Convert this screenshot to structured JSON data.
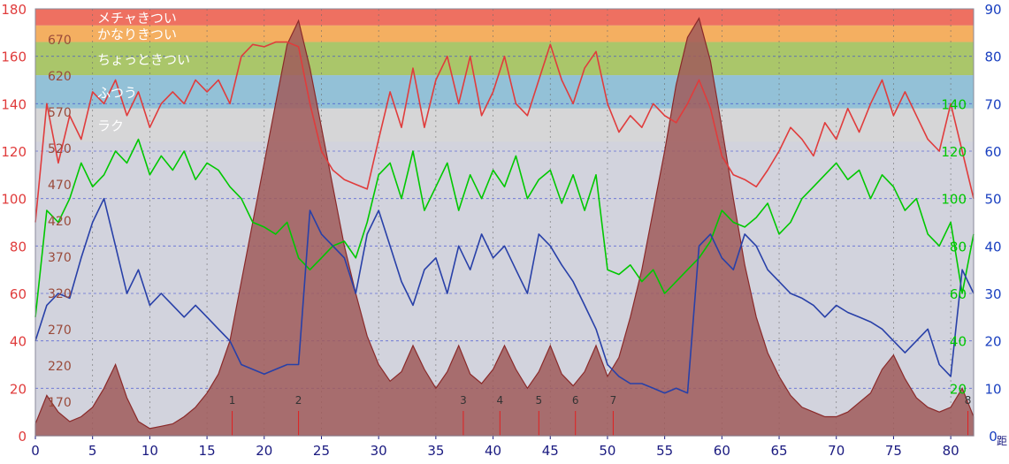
{
  "chart_data": {
    "type": "line",
    "x_ticks": [
      0,
      5,
      10,
      15,
      20,
      25,
      30,
      35,
      40,
      45,
      50,
      55,
      60,
      65,
      70,
      75,
      80
    ],
    "xlim": [
      0,
      82
    ],
    "y_left_ticks": [
      0,
      20,
      40,
      60,
      80,
      100,
      120,
      140,
      160,
      180
    ],
    "ylim_left": [
      0,
      180
    ],
    "y_right_ticks": [
      0,
      10,
      20,
      30,
      40,
      50,
      60,
      70,
      80,
      90
    ],
    "ylim_right": [
      0,
      90
    ],
    "y_right_green_ticks": [
      20,
      40,
      60,
      80,
      100,
      120,
      140
    ],
    "y_inner_ticks": [
      170,
      220,
      270,
      320,
      370,
      420,
      470,
      520,
      570,
      620,
      670
    ],
    "x_unit_label": "距",
    "zones": [
      {
        "label": "メチャきつい",
        "from": 173,
        "to": 180,
        "color": "#ef6a5a"
      },
      {
        "label": "かなりきつい",
        "from": 166,
        "to": 173,
        "color": "#f6ad5a"
      },
      {
        "label": "ちょっときつい",
        "from": 152,
        "to": 166,
        "color": "#a8c563"
      },
      {
        "label": "ふつう",
        "from": 138,
        "to": 152,
        "color": "#8fc0d6"
      },
      {
        "label": "ラク",
        "from": 124,
        "to": 138,
        "color": "#d6d6d6"
      }
    ],
    "markers": [
      {
        "label": "1",
        "x": 17.2
      },
      {
        "label": "2",
        "x": 23.0
      },
      {
        "label": "3",
        "x": 37.4
      },
      {
        "label": "4",
        "x": 40.6
      },
      {
        "label": "5",
        "x": 44.0
      },
      {
        "label": "6",
        "x": 47.2
      },
      {
        "label": "7",
        "x": 50.5
      },
      {
        "label": "8",
        "x": 81.5
      }
    ],
    "series": [
      {
        "key": "elevation",
        "axis": "left",
        "color": "#a05050",
        "x": [
          0,
          1,
          2,
          3,
          4,
          5,
          6,
          7,
          8,
          9,
          10,
          11,
          12,
          13,
          14,
          15,
          16,
          17,
          18,
          19,
          20,
          21,
          22,
          23,
          24,
          25,
          26,
          27,
          28,
          29,
          30,
          31,
          32,
          33,
          34,
          35,
          36,
          37,
          38,
          39,
          40,
          41,
          42,
          43,
          44,
          45,
          46,
          47,
          48,
          49,
          50,
          51,
          52,
          53,
          54,
          55,
          56,
          57,
          58,
          59,
          60,
          61,
          62,
          63,
          64,
          65,
          66,
          67,
          68,
          69,
          70,
          71,
          72,
          73,
          74,
          75,
          76,
          77,
          78,
          79,
          80,
          81,
          82
        ],
        "values": [
          5,
          17,
          10,
          6,
          8,
          12,
          20,
          30,
          16,
          6,
          3,
          4,
          5,
          8,
          12,
          18,
          26,
          40,
          65,
          90,
          115,
          140,
          165,
          175,
          155,
          130,
          105,
          80,
          60,
          42,
          30,
          23,
          27,
          38,
          28,
          20,
          27,
          38,
          26,
          22,
          28,
          38,
          28,
          20,
          27,
          38,
          26,
          21,
          27,
          38,
          25,
          33,
          50,
          70,
          95,
          120,
          148,
          168,
          176,
          158,
          130,
          100,
          72,
          50,
          35,
          25,
          17,
          12,
          10,
          8,
          8,
          10,
          14,
          18,
          28,
          34,
          24,
          16,
          12,
          10,
          12,
          20,
          8
        ]
      },
      {
        "key": "red",
        "axis": "left",
        "color": "#e03c3c",
        "x": [
          0,
          1,
          2,
          3,
          4,
          5,
          6,
          7,
          8,
          9,
          10,
          11,
          12,
          13,
          14,
          15,
          16,
          17,
          18,
          19,
          20,
          21,
          22,
          23,
          24,
          25,
          26,
          27,
          28,
          29,
          30,
          31,
          32,
          33,
          34,
          35,
          36,
          37,
          38,
          39,
          40,
          41,
          42,
          43,
          44,
          45,
          46,
          47,
          48,
          49,
          50,
          51,
          52,
          53,
          54,
          55,
          56,
          57,
          58,
          59,
          60,
          61,
          62,
          63,
          64,
          65,
          66,
          67,
          68,
          69,
          70,
          71,
          72,
          73,
          74,
          75,
          76,
          77,
          78,
          79,
          80,
          81,
          82
        ],
        "values": [
          90,
          140,
          115,
          135,
          125,
          145,
          140,
          150,
          135,
          145,
          130,
          140,
          145,
          140,
          150,
          145,
          150,
          140,
          160,
          165,
          164,
          166,
          166,
          164,
          140,
          120,
          112,
          108,
          106,
          104,
          125,
          145,
          130,
          155,
          130,
          150,
          160,
          140,
          160,
          135,
          145,
          160,
          140,
          135,
          150,
          165,
          150,
          140,
          155,
          162,
          140,
          128,
          135,
          130,
          140,
          135,
          132,
          140,
          150,
          138,
          118,
          110,
          108,
          105,
          112,
          120,
          130,
          125,
          118,
          132,
          125,
          138,
          128,
          140,
          150,
          135,
          145,
          135,
          125,
          120,
          140,
          120,
          100
        ]
      },
      {
        "key": "green",
        "axis": "left",
        "color": "#00c800",
        "x": [
          0,
          1,
          2,
          3,
          4,
          5,
          6,
          7,
          8,
          9,
          10,
          11,
          12,
          13,
          14,
          15,
          16,
          17,
          18,
          19,
          20,
          21,
          22,
          23,
          24,
          25,
          26,
          27,
          28,
          29,
          30,
          31,
          32,
          33,
          34,
          35,
          36,
          37,
          38,
          39,
          40,
          41,
          42,
          43,
          44,
          45,
          46,
          47,
          48,
          49,
          50,
          51,
          52,
          53,
          54,
          55,
          56,
          57,
          58,
          59,
          60,
          61,
          62,
          63,
          64,
          65,
          66,
          67,
          68,
          69,
          70,
          71,
          72,
          73,
          74,
          75,
          76,
          77,
          78,
          79,
          80,
          81,
          82
        ],
        "values": [
          50,
          95,
          90,
          100,
          115,
          105,
          110,
          120,
          115,
          125,
          110,
          118,
          112,
          120,
          108,
          115,
          112,
          105,
          100,
          90,
          88,
          85,
          90,
          75,
          70,
          75,
          80,
          82,
          75,
          90,
          110,
          115,
          100,
          120,
          95,
          105,
          115,
          95,
          110,
          100,
          112,
          105,
          118,
          100,
          108,
          112,
          98,
          110,
          95,
          110,
          70,
          68,
          72,
          65,
          70,
          60,
          65,
          70,
          75,
          82,
          95,
          90,
          88,
          92,
          98,
          85,
          90,
          100,
          105,
          110,
          115,
          108,
          112,
          100,
          110,
          105,
          95,
          100,
          85,
          80,
          90,
          60,
          85
        ]
      },
      {
        "key": "blue",
        "axis": "left",
        "color": "#2840a8",
        "x": [
          0,
          1,
          2,
          3,
          4,
          5,
          6,
          7,
          8,
          9,
          10,
          11,
          12,
          13,
          14,
          15,
          16,
          17,
          18,
          19,
          20,
          21,
          22,
          23,
          24,
          25,
          26,
          27,
          28,
          29,
          30,
          31,
          32,
          33,
          34,
          35,
          36,
          37,
          38,
          39,
          40,
          41,
          42,
          43,
          44,
          45,
          46,
          47,
          48,
          49,
          50,
          51,
          52,
          53,
          54,
          55,
          56,
          57,
          58,
          59,
          60,
          61,
          62,
          63,
          64,
          65,
          66,
          67,
          68,
          69,
          70,
          71,
          72,
          73,
          74,
          75,
          76,
          77,
          78,
          79,
          80,
          81,
          82
        ],
        "values": [
          40,
          55,
          60,
          58,
          75,
          90,
          100,
          80,
          60,
          70,
          55,
          60,
          55,
          50,
          55,
          50,
          45,
          40,
          30,
          28,
          26,
          28,
          30,
          30,
          95,
          85,
          80,
          75,
          60,
          85,
          95,
          80,
          65,
          55,
          70,
          75,
          60,
          80,
          70,
          85,
          75,
          80,
          70,
          60,
          85,
          80,
          72,
          65,
          55,
          45,
          30,
          25,
          22,
          22,
          20,
          18,
          20,
          18,
          80,
          85,
          75,
          70,
          85,
          80,
          70,
          65,
          60,
          58,
          55,
          50,
          55,
          52,
          50,
          48,
          45,
          40,
          35,
          40,
          45,
          30,
          25,
          70,
          60
        ]
      }
    ]
  }
}
